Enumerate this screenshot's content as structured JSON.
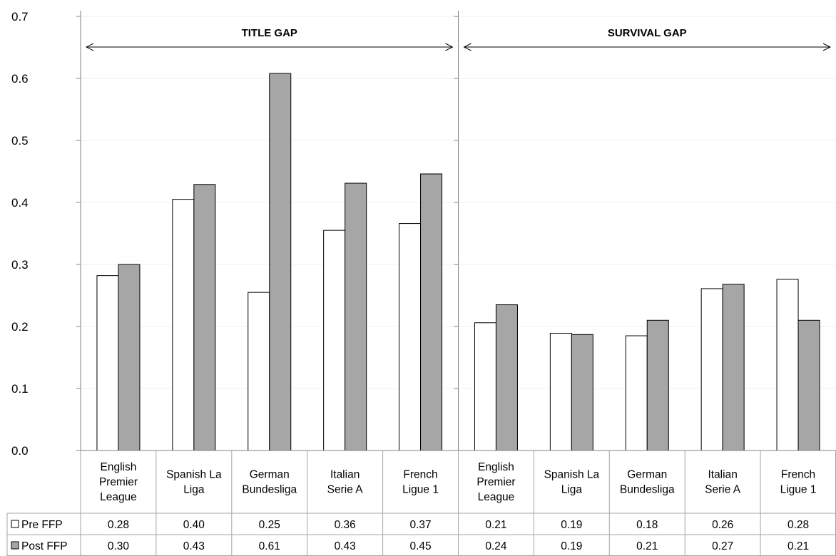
{
  "chart_data": {
    "type": "bar",
    "ylim": [
      0,
      0.7
    ],
    "y_ticks": [
      "0.0",
      "0.1",
      "0.2",
      "0.3",
      "0.4",
      "0.5",
      "0.6",
      "0.7"
    ],
    "legend": "data-table",
    "panels": [
      {
        "title": "TITLE GAP",
        "categories": [
          [
            "English",
            "Premier",
            "League"
          ],
          [
            "Spanish La",
            "Liga"
          ],
          [
            "German",
            "Bundesliga"
          ],
          [
            "Italian",
            "Serie A"
          ],
          [
            "French",
            "Ligue 1"
          ]
        ],
        "series": [
          {
            "name": "Pre FFP",
            "values": [
              0.282,
              0.405,
              0.255,
              0.355,
              0.366
            ],
            "labels": [
              "0.28",
              "0.40",
              "0.25",
              "0.36",
              "0.37"
            ]
          },
          {
            "name": "Post FFP",
            "values": [
              0.3,
              0.429,
              0.608,
              0.431,
              0.446
            ],
            "labels": [
              "0.30",
              "0.43",
              "0.61",
              "0.43",
              "0.45"
            ]
          }
        ]
      },
      {
        "title": "SURVIVAL GAP",
        "categories": [
          [
            "English",
            "Premier",
            "League"
          ],
          [
            "Spanish La",
            "Liga"
          ],
          [
            "German",
            "Bundesliga"
          ],
          [
            "Italian",
            "Serie A"
          ],
          [
            "French",
            "Ligue 1"
          ]
        ],
        "series": [
          {
            "name": "Pre FFP",
            "values": [
              0.206,
              0.189,
              0.185,
              0.261,
              0.276
            ],
            "labels": [
              "0.21",
              "0.19",
              "0.18",
              "0.26",
              "0.28"
            ]
          },
          {
            "name": "Post FFP",
            "values": [
              0.235,
              0.187,
              0.21,
              0.268,
              0.21
            ],
            "labels": [
              "0.24",
              "0.19",
              "0.21",
              "0.27",
              "0.21"
            ]
          }
        ]
      }
    ],
    "colors": {
      "pre": "#ffffff",
      "post": "#a6a6a6",
      "outline": "#000000",
      "grid": "#f0f0f0",
      "axis": "#808080"
    }
  }
}
